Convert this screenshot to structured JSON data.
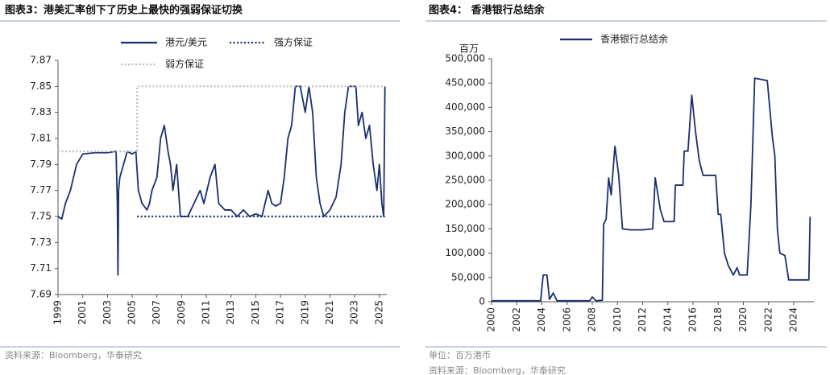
{
  "chart_data": [
    {
      "type": "line",
      "title": "图表3：港美汇率创下了历史上最快的强弱保证切换",
      "source": "资料来源：Bloomberg，华泰研究",
      "xlim": [
        1999,
        2025.6
      ],
      "xticks": [
        1999,
        2001,
        2003,
        2005,
        2007,
        2009,
        2011,
        2013,
        2015,
        2017,
        2019,
        2021,
        2023,
        2025
      ],
      "ylim": [
        7.69,
        7.87
      ],
      "yticks": [
        7.69,
        7.71,
        7.73,
        7.75,
        7.77,
        7.79,
        7.81,
        7.83,
        7.85,
        7.87
      ],
      "series": [
        {
          "name": "港元/美元",
          "color": "#1b2f6e",
          "style": "solid",
          "x": [
            1999.0,
            1999.3,
            1999.6,
            2000.0,
            2000.5,
            2001.0,
            2002.0,
            2003.0,
            2003.7,
            2003.8,
            2003.85,
            2003.9,
            2004.0,
            2004.3,
            2004.6,
            2005.0,
            2005.3,
            2005.5,
            2005.8,
            2006.2,
            2006.4,
            2006.6,
            2007.0,
            2007.3,
            2007.6,
            2007.9,
            2008.1,
            2008.3,
            2008.6,
            2008.9,
            2009.5,
            2010.0,
            2010.5,
            2010.8,
            2011.3,
            2011.7,
            2012.0,
            2012.5,
            2013.0,
            2013.5,
            2014.0,
            2014.5,
            2015.0,
            2015.5,
            2016.0,
            2016.3,
            2016.6,
            2017.0,
            2017.3,
            2017.6,
            2017.9,
            2018.2,
            2018.6,
            2019.0,
            2019.3,
            2019.6,
            2019.9,
            2020.2,
            2020.5,
            2021.0,
            2021.5,
            2021.9,
            2022.2,
            2022.5,
            2022.8,
            2023.1,
            2023.3,
            2023.6,
            2023.9,
            2024.2,
            2024.5,
            2024.8,
            2025.0,
            2025.2,
            2025.35,
            2025.45
          ],
          "values": [
            7.75,
            7.748,
            7.76,
            7.77,
            7.79,
            7.798,
            7.799,
            7.799,
            7.8,
            7.76,
            7.705,
            7.77,
            7.78,
            7.79,
            7.8,
            7.798,
            7.8,
            7.77,
            7.76,
            7.755,
            7.76,
            7.77,
            7.78,
            7.81,
            7.82,
            7.8,
            7.79,
            7.77,
            7.79,
            7.75,
            7.75,
            7.76,
            7.77,
            7.76,
            7.78,
            7.79,
            7.76,
            7.755,
            7.755,
            7.75,
            7.755,
            7.75,
            7.752,
            7.75,
            7.77,
            7.76,
            7.758,
            7.76,
            7.78,
            7.81,
            7.82,
            7.85,
            7.85,
            7.83,
            7.85,
            7.83,
            7.78,
            7.76,
            7.75,
            7.755,
            7.765,
            7.79,
            7.83,
            7.85,
            7.85,
            7.85,
            7.82,
            7.83,
            7.81,
            7.82,
            7.79,
            7.77,
            7.79,
            7.76,
            7.75,
            7.85
          ]
        },
        {
          "name": "强方保证",
          "color": "#1b2f6e",
          "style": "dotted",
          "x": [
            2005.4,
            2025.45
          ],
          "values": [
            7.75,
            7.75
          ]
        },
        {
          "name": "弱方保证",
          "color": "#bdbdbd",
          "style": "dotted",
          "x": [
            1999.0,
            2005.4,
            2005.4,
            2025.45
          ],
          "values": [
            7.8,
            7.8,
            7.85,
            7.85
          ]
        }
      ]
    },
    {
      "type": "line",
      "title": "图表4： 香港银行总结余",
      "y_label": "百万",
      "note": "单位：百万港币",
      "source": "资料来源：Bloomberg，华泰研究",
      "xlim": [
        2000,
        2025.6
      ],
      "xticks": [
        2000,
        2002,
        2004,
        2006,
        2008,
        2010,
        2012,
        2014,
        2016,
        2018,
        2020,
        2022,
        2024
      ],
      "ylim": [
        0,
        500000
      ],
      "yticks": [
        0,
        {
          "value": 50000,
          "label": "50,000"
        },
        {
          "value": 100000,
          "label": "100,000"
        },
        {
          "value": 150000,
          "label": "150,000"
        },
        {
          "value": 200000,
          "label": "200,000"
        },
        {
          "value": 250000,
          "label": "250,000"
        },
        {
          "value": 300000,
          "label": "300,000"
        },
        {
          "value": 350000,
          "label": "350,000"
        },
        {
          "value": 400000,
          "label": "400,000"
        },
        {
          "value": 450000,
          "label": "450,000"
        },
        {
          "value": 500000,
          "label": "500,000"
        }
      ],
      "series": [
        {
          "name": "香港银行总结余",
          "color": "#1b2f6e",
          "style": "solid",
          "x": [
            2000.0,
            2003.9,
            2004.1,
            2004.4,
            2004.6,
            2004.9,
            2005.2,
            2007.8,
            2008.0,
            2008.3,
            2008.8,
            2008.9,
            2009.1,
            2009.3,
            2009.5,
            2009.8,
            2010.1,
            2010.4,
            2011.0,
            2012.0,
            2012.8,
            2013.0,
            2013.4,
            2013.7,
            2014.5,
            2014.6,
            2015.2,
            2015.3,
            2015.6,
            2015.9,
            2016.2,
            2016.5,
            2016.8,
            2017.8,
            2018.0,
            2018.2,
            2018.5,
            2018.8,
            2019.2,
            2019.5,
            2019.7,
            2020.3,
            2020.6,
            2020.9,
            2021.9,
            2022.3,
            2022.5,
            2022.7,
            2022.9,
            2023.3,
            2023.6,
            2024.5,
            2025.2,
            2025.3
          ],
          "values": [
            2000,
            2000,
            55000,
            55000,
            5000,
            18000,
            2000,
            2000,
            10000,
            2000,
            3000,
            160000,
            170000,
            255000,
            220000,
            320000,
            260000,
            150000,
            148000,
            148000,
            150000,
            255000,
            190000,
            165000,
            165000,
            240000,
            240000,
            310000,
            310000,
            425000,
            350000,
            290000,
            260000,
            260000,
            180000,
            180000,
            100000,
            75000,
            55000,
            70000,
            55000,
            55000,
            200000,
            460000,
            455000,
            340000,
            300000,
            150000,
            100000,
            95000,
            45000,
            45000,
            45000,
            175000
          ]
        }
      ]
    }
  ]
}
